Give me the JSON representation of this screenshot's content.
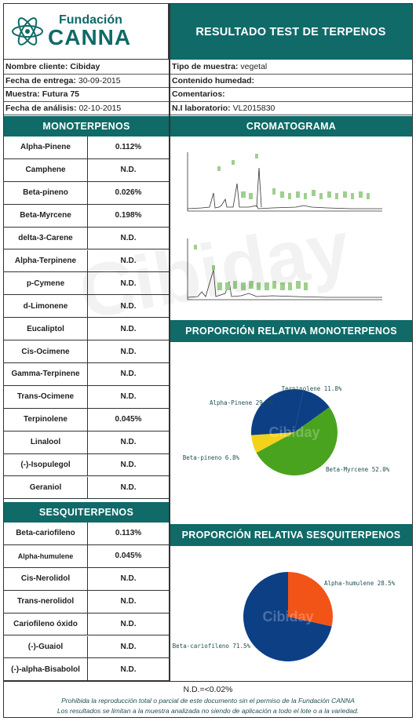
{
  "header": {
    "logo_top": "Fundación",
    "logo_bottom": "CANNA",
    "title": "RESULTADO TEST DE TERPENOS"
  },
  "info": {
    "left": [
      {
        "label": "Nombre cliente:",
        "value": "Cibiday"
      },
      {
        "label": "Fecha de entrega:",
        "value": "30-09-2015"
      },
      {
        "label": "Muestra:",
        "value": "Futura 75"
      },
      {
        "label": "Fecha de análisis:",
        "value": "02-10-2015"
      }
    ],
    "right": [
      {
        "label": "Tipo de muestra:",
        "value": "vegetal"
      },
      {
        "label": "Contenido humedad:",
        "value": ""
      },
      {
        "label": "Comentarios:",
        "value": ""
      },
      {
        "label": "N.I laboratorio:",
        "value": "VL2015830"
      }
    ]
  },
  "monoterpenos": {
    "heading": "MONOTERPENOS",
    "rows": [
      {
        "name": "Alpha-Pinene",
        "value": "0.112%"
      },
      {
        "name": "Camphene",
        "value": "N.D."
      },
      {
        "name": "Beta-pineno",
        "value": "0.026%"
      },
      {
        "name": "Beta-Myrcene",
        "value": "0.198%"
      },
      {
        "name": "delta-3-Carene",
        "value": "N.D."
      },
      {
        "name": "Alpha-Terpinene",
        "value": "N.D."
      },
      {
        "name": "p-Cymene",
        "value": "N.D."
      },
      {
        "name": "d-Limonene",
        "value": "N.D."
      },
      {
        "name": "Eucaliptol",
        "value": "N.D."
      },
      {
        "name": "Cis-Ocimene",
        "value": "N.D."
      },
      {
        "name": "Gamma-Terpinene",
        "value": "N.D."
      },
      {
        "name": "Trans-Ocimene",
        "value": "N.D."
      },
      {
        "name": "Terpinolene",
        "value": "0.045%"
      },
      {
        "name": "Linalool",
        "value": "N.D."
      },
      {
        "name": "(-)-Isopulegol",
        "value": "N.D."
      },
      {
        "name": "Geraniol",
        "value": "N.D."
      }
    ]
  },
  "sesquiterpenos": {
    "heading": "SESQUITERPENOS",
    "rows": [
      {
        "name": "Beta-cariofileno",
        "value": "0.113%"
      },
      {
        "name": "Alpha-humulene",
        "value": "0.045%"
      },
      {
        "name": "Cis-Nerolidol",
        "value": "N.D."
      },
      {
        "name": "Trans-nerolidol",
        "value": "N.D."
      },
      {
        "name": "Cariofileno óxido",
        "value": "N.D."
      },
      {
        "name": "(-)-Guaiol",
        "value": "N.D."
      },
      {
        "name": "(-)-alpha-Bisabolol",
        "value": "N.D."
      }
    ]
  },
  "cromatograma": {
    "heading": "CROMATOGRAMA"
  },
  "prop_mono": {
    "heading": "PROPORCIÓN RELATIVA MONOTERPENOS"
  },
  "prop_sesqui": {
    "heading": "PROPORCIÓN RELATIVA SESQUITERPENOS"
  },
  "watermark": "Cibiday",
  "footer": {
    "nd": "N.D.=<0.02%",
    "line1": "Prohibida la reproducción total o parcial de este documento sin el permiso de la Fundación CANNA",
    "line2": "Los resultados se limitan a la muestra analizada no siendo de aplicación a todo el lote o a la variedad."
  },
  "colors": {
    "teal": "#0f6a68",
    "navy": "#0d3f85",
    "green": "#4aa31f",
    "yellow": "#f2d21a",
    "orange": "#f25417"
  },
  "chart_data": [
    {
      "type": "pie",
      "title": "PROPORCIÓN RELATIVA MONOTERPENOS",
      "categories": [
        "Terpinolene",
        "Beta-Myrcene",
        "Beta-pineno",
        "Alpha-Pinene"
      ],
      "values": [
        11.8,
        52.0,
        6.8,
        29.4
      ],
      "labels": [
        "Terpinolene 11.8%",
        "Beta-Myrcene 52.0%",
        "Beta-pineno 6.8%",
        "Alpha-Pinene 29.4%"
      ],
      "colors": [
        "#0d3f85",
        "#4aa31f",
        "#f2d21a",
        "#0d3f85"
      ]
    },
    {
      "type": "pie",
      "title": "PROPORCIÓN RELATIVA SESQUITERPENOS",
      "categories": [
        "Alpha-humulene",
        "Beta-cariofileno"
      ],
      "values": [
        28.5,
        71.5
      ],
      "labels": [
        "Alpha-humulene 28.5%",
        "Beta-cariofileno 71.5%"
      ],
      "colors": [
        "#f25417",
        "#0d3f85"
      ]
    }
  ]
}
